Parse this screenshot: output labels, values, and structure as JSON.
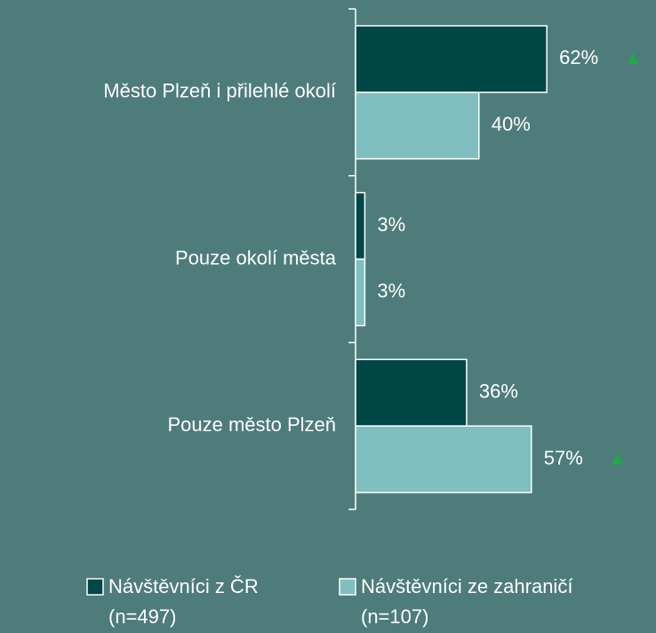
{
  "chart_data": {
    "type": "hbar",
    "categories": [
      "Město Plzeň i přilehlé okolí",
      "Pouze okolí města",
      "Pouze město Plzeň"
    ],
    "xlim": [
      0,
      100
    ],
    "significance_marker": "▲",
    "significance_color": "#1fa84a",
    "series": [
      {
        "name": "Návštěvníci z ČR",
        "sample": "(n=497)",
        "color": "#004747",
        "values": [
          62,
          3,
          36
        ],
        "value_labels": [
          "62%",
          "3%",
          "36%"
        ],
        "significant": [
          true,
          false,
          false
        ]
      },
      {
        "name": "Návštěvníci ze zahraničí",
        "sample": "(n=107)",
        "color": "#7fbfc0",
        "values": [
          40,
          3,
          57
        ],
        "value_labels": [
          "40%",
          "3%",
          "57%"
        ],
        "significant": [
          false,
          false,
          true
        ]
      }
    ]
  }
}
